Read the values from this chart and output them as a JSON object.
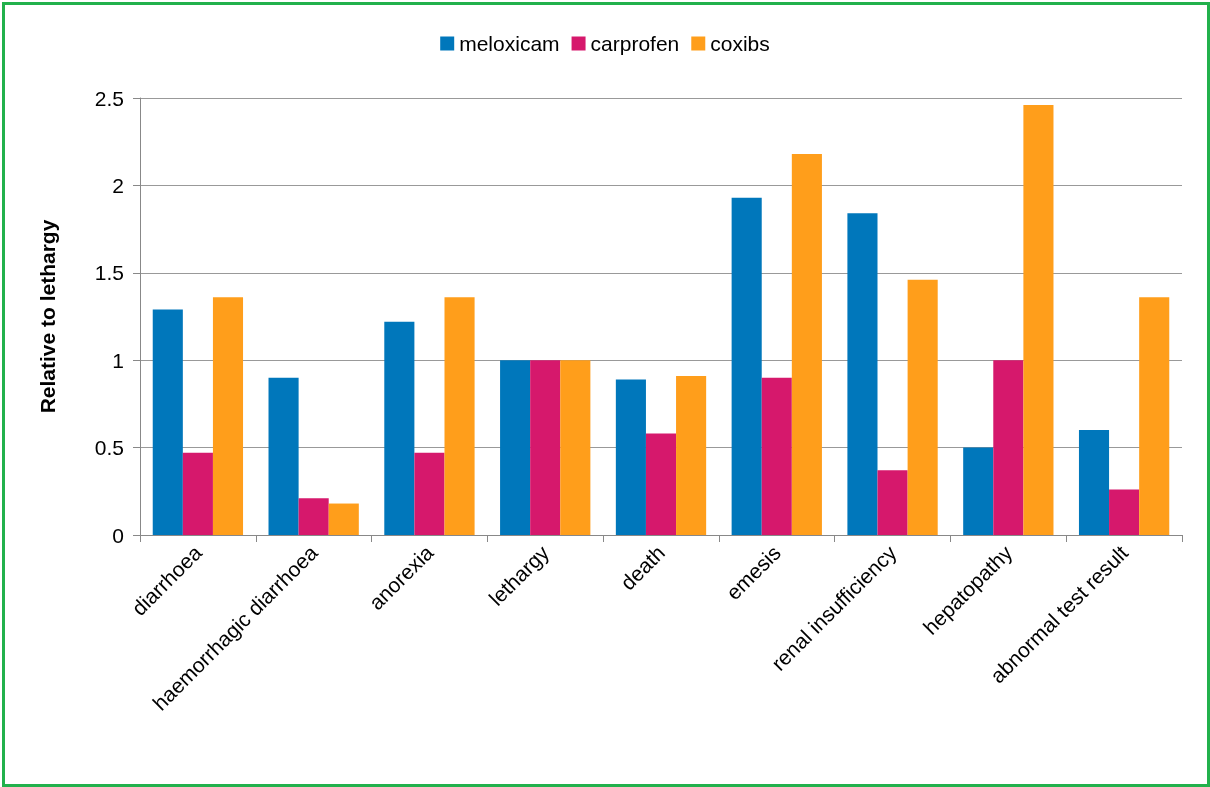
{
  "chart_data": {
    "type": "bar",
    "ylabel": "Relative to lethargy",
    "categories": [
      "diarrhoea",
      "haemorrhagic diarrhoea",
      "anorexia",
      "lethargy",
      "death",
      "emesis",
      "renal insufficiency",
      "hepatopathy",
      "abnormal test result"
    ],
    "series": [
      {
        "name": "meloxicam",
        "color": "#0077bb",
        "values": [
          1.29,
          0.9,
          1.22,
          1,
          0.89,
          1.93,
          1.84,
          0.5,
          0.6
        ]
      },
      {
        "name": "carprofen",
        "color": "#d6186c",
        "values": [
          0.47,
          0.21,
          0.47,
          1,
          0.58,
          0.9,
          0.37,
          1,
          0.26
        ]
      },
      {
        "name": "coxibs",
        "color": "#ff9e1b",
        "values": [
          1.36,
          0.18,
          1.36,
          1,
          0.91,
          2.18,
          1.46,
          2.46,
          1.36
        ]
      }
    ],
    "ylim": [
      0,
      2.5
    ],
    "yticks": [
      0,
      0.5,
      1,
      1.5,
      2,
      2.5
    ],
    "grid": "y",
    "legend": "top"
  }
}
